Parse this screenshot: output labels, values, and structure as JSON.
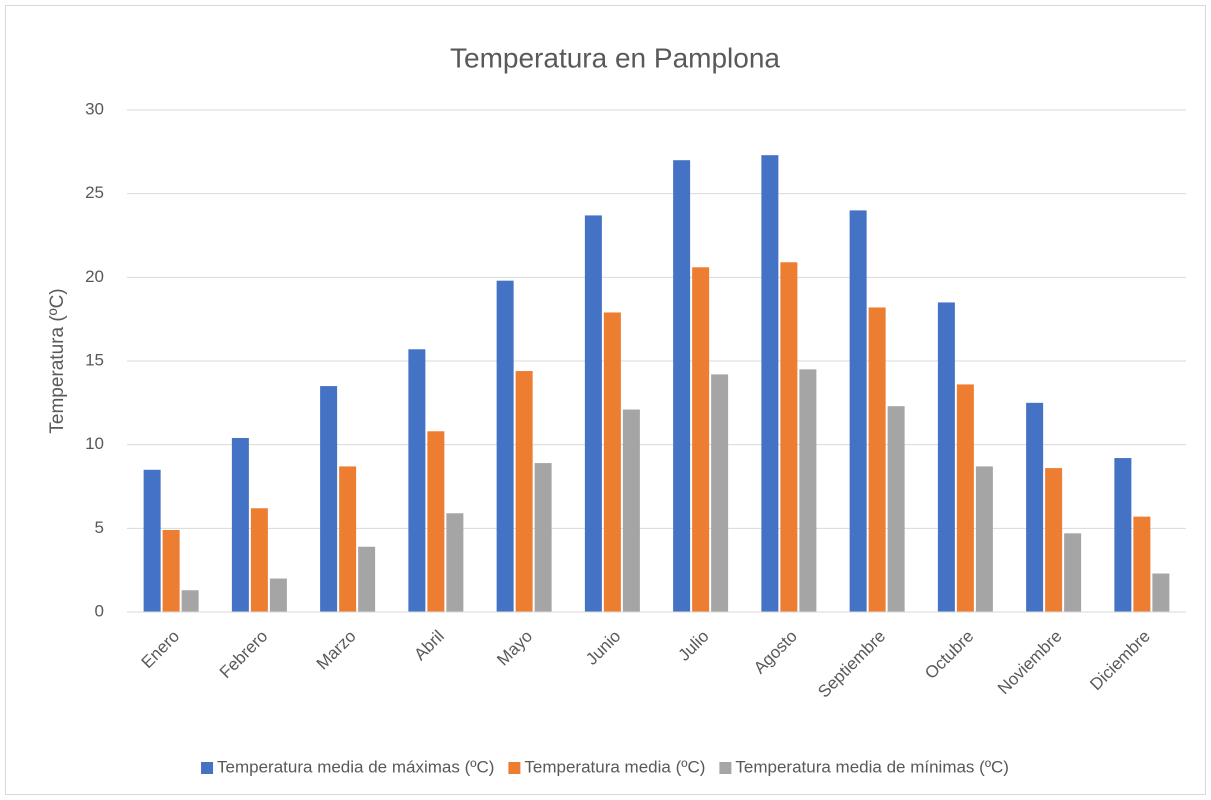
{
  "chart_data": {
    "type": "bar",
    "title": "Temperatura en Pamplona",
    "y_label": "Temperatura (ºC)",
    "categories": [
      "Enero",
      "Febrero",
      "Marzo",
      "Abril",
      "Mayo",
      "Junio",
      "Julio",
      "Agosto",
      "Septiembre",
      "Octubre",
      "Noviembre",
      "Diciembre"
    ],
    "series": [
      {
        "name": "Temperatura media de máximas (ºC)",
        "color": "#4472c4",
        "values": [
          8.5,
          10.4,
          13.5,
          15.7,
          19.8,
          23.7,
          27.0,
          27.3,
          24.0,
          18.5,
          12.5,
          9.2
        ]
      },
      {
        "name": "Temperatura media (ºC)",
        "color": "#ed7d31",
        "values": [
          4.9,
          6.2,
          8.7,
          10.8,
          14.4,
          17.9,
          20.6,
          20.9,
          18.2,
          13.6,
          8.6,
          5.7
        ]
      },
      {
        "name": "Temperatura media de mínimas (ºC)",
        "color": "#a5a5a5",
        "values": [
          1.3,
          2.0,
          3.9,
          5.9,
          8.9,
          12.1,
          14.2,
          14.5,
          12.3,
          8.7,
          4.7,
          2.3
        ]
      }
    ],
    "ylim": [
      0,
      30
    ],
    "yticks": [
      0,
      5,
      10,
      15,
      20,
      25,
      30
    ],
    "grid": true,
    "legend": "bottom"
  }
}
